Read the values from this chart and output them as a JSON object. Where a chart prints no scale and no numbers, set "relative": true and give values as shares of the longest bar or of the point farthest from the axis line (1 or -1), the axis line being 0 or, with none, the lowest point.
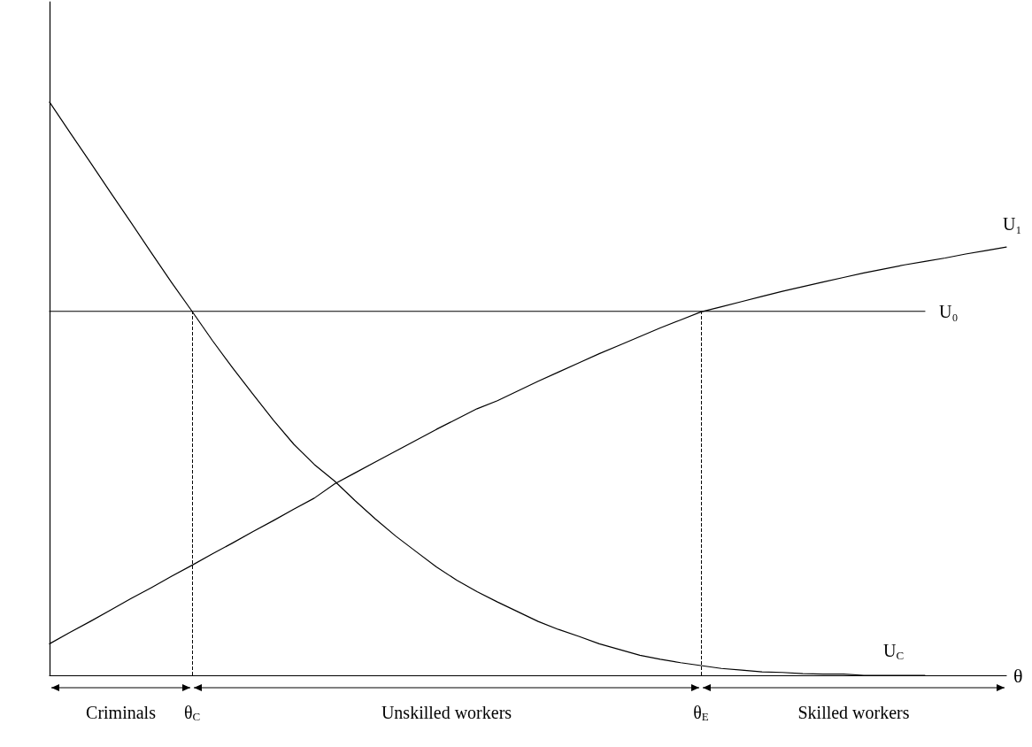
{
  "chart_data": {
    "type": "line",
    "relative": true,
    "xlabel": "θ",
    "categories": [
      null,
      null,
      null,
      null,
      null,
      null,
      null,
      "θ$_{C}$",
      null,
      null,
      null,
      null,
      null,
      null,
      null,
      null,
      null,
      null,
      null,
      null,
      null,
      null,
      null,
      null,
      null,
      null,
      null,
      null,
      null,
      null,
      null,
      null,
      "θ$_{E}$",
      null,
      null,
      null,
      null,
      null,
      null,
      null,
      null,
      null,
      null,
      null,
      null,
      null,
      null,
      null
    ],
    "series": [
      {
        "name": "U$_{C}$",
        "color": "#000000",
        "values": [
          1.0,
          0.947,
          0.895,
          0.842,
          0.79,
          0.737,
          0.685,
          0.635,
          0.584,
          0.536,
          0.49,
          0.445,
          0.403,
          0.368,
          0.339,
          0.305,
          0.273,
          0.243,
          0.216,
          0.189,
          0.166,
          0.146,
          0.128,
          0.111,
          0.094,
          0.08,
          0.068,
          0.055,
          0.045,
          0.035,
          0.028,
          0.022,
          0.017,
          0.012,
          0.009,
          0.006,
          0.005,
          0.003,
          0.002,
          0.002,
          0,
          0,
          0,
          0,
          null,
          null,
          null,
          null
        ]
      },
      {
        "name": "U₀",
        "color": "#000000",
        "values": [
          0.635,
          0.635,
          0.635,
          0.635,
          0.635,
          0.635,
          0.635,
          0.635,
          0.635,
          0.635,
          0.635,
          0.635,
          0.635,
          0.635,
          0.635,
          0.635,
          0.635,
          0.635,
          0.635,
          0.635,
          0.635,
          0.635,
          0.635,
          0.635,
          0.635,
          0.635,
          0.635,
          0.635,
          0.635,
          0.635,
          0.635,
          0.635,
          0.635,
          0.635,
          0.635,
          0.635,
          0.635,
          0.635,
          0.635,
          0.635,
          0.635,
          0.635,
          0.635,
          0.635,
          null,
          null,
          null,
          null
        ]
      },
      {
        "name": "U₁",
        "color": "#000000",
        "values": [
          0.055,
          0.075,
          0.094,
          0.114,
          0.134,
          0.153,
          0.173,
          0.192,
          0.212,
          0.231,
          0.251,
          0.27,
          0.29,
          0.309,
          0.334,
          0.353,
          0.372,
          0.391,
          0.41,
          0.429,
          0.447,
          0.465,
          0.479,
          0.496,
          0.513,
          0.529,
          0.545,
          0.561,
          0.576,
          0.591,
          0.606,
          0.62,
          0.634,
          0.643,
          0.652,
          0.661,
          0.67,
          0.678,
          0.686,
          0.694,
          0.702,
          0.709,
          0.716,
          0.722,
          0.728,
          0.735,
          0.741,
          0.747
        ]
      }
    ],
    "ref_lines": [
      {
        "axis": "x",
        "value": "θ$_{C}$",
        "line_style": "dashed"
      },
      {
        "axis": "x",
        "value": "θ$_{E}$",
        "line_style": "dashed"
      }
    ],
    "annotations": [
      "Criminals",
      "Unskilled workers",
      "Skilled workers"
    ],
    "grid": false,
    "legend": false,
    "marker": "none",
    "line_style": "solid"
  }
}
